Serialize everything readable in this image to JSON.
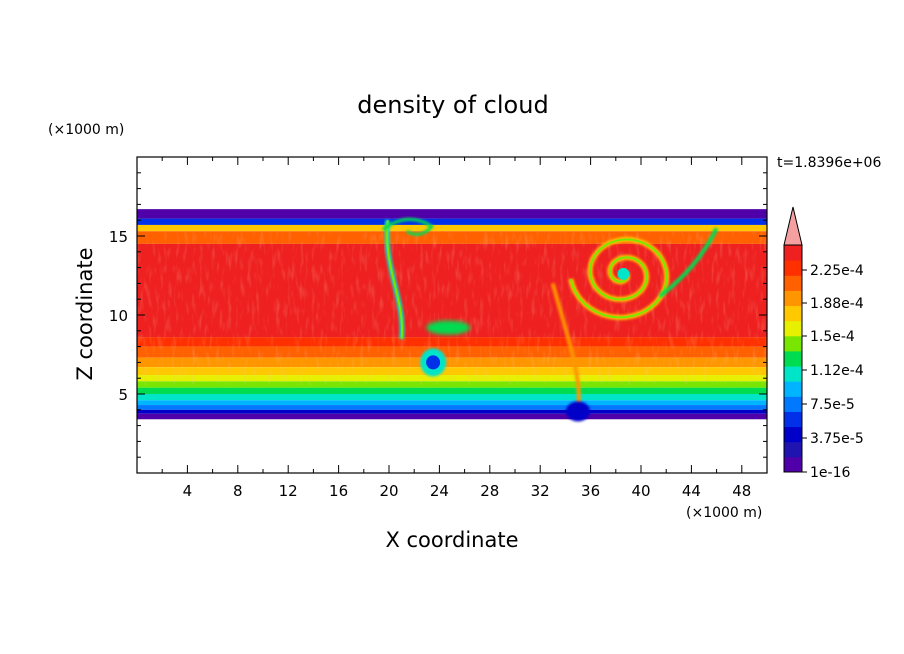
{
  "chart_data": {
    "type": "heatmap",
    "title": "density of cloud",
    "xlabel": "X coordinate",
    "ylabel": "Z coordinate",
    "x_unit": "(×1000 m)",
    "y_unit": "(×1000 m)",
    "time_label": "t=1.8396e+06",
    "xlim": [
      0,
      50
    ],
    "ylim": [
      0,
      20
    ],
    "x_ticks": [
      "4",
      "8",
      "12",
      "16",
      "20",
      "24",
      "28",
      "32",
      "36",
      "40",
      "44",
      "48"
    ],
    "y_ticks": [
      "5",
      "10",
      "15"
    ],
    "field_extent": {
      "x": [
        0,
        50
      ],
      "z_bottom": 3.4,
      "z_top": 16.7,
      "z_min_dip_x": 34.5,
      "z_min_dip": 3.0
    },
    "features": [
      {
        "kind": "vortex",
        "x": 38.6,
        "z": 12.6,
        "note": "swirl with low-density core"
      },
      {
        "kind": "plume",
        "x": 20.5,
        "z_from": 16,
        "z_to": 8.5,
        "note": "vertical low-density plume"
      },
      {
        "kind": "low-density pocket",
        "x": 23.5,
        "z": 7.0
      },
      {
        "kind": "plume",
        "x": 35.0,
        "z_from": 12,
        "z_to": 4,
        "note": "descending streak"
      }
    ],
    "colorbar": {
      "labels": [
        "2.25e-4",
        "1.88e-4",
        "1.5e-4",
        "1.12e-4",
        "7.5e-5",
        "3.75e-5",
        "1e-16"
      ],
      "levels": [
        1e-16,
        1.875e-05,
        3.75e-05,
        5.625e-05,
        7.5e-05,
        9.375e-05,
        0.0001125,
        0.00013125,
        0.00015,
        0.00016875,
        0.0001875,
        0.00020625,
        0.000225,
        0.00024375
      ],
      "colors": [
        "#5000a8",
        "#2014b0",
        "#0000c8",
        "#0030e8",
        "#0078ff",
        "#00b4ff",
        "#00e4c8",
        "#00dc50",
        "#78e600",
        "#e6f000",
        "#ffc800",
        "#ff9600",
        "#ff6000",
        "#ff3000",
        "#ee2020",
        "#f4a0a0"
      ],
      "extend_max": true
    }
  }
}
